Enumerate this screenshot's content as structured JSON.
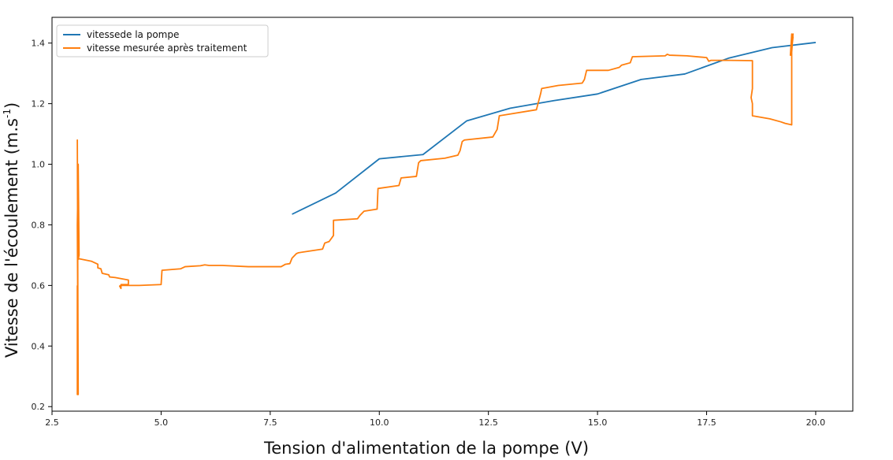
{
  "chart_data": {
    "type": "line",
    "xlabel": "Tension d'alimentation de la pompe (V)",
    "ylabel": "Vitesse de l'écoulement (m.s",
    "ylabel_sup": "-1",
    "ylabel_close": ")",
    "xlim": [
      2.5,
      20.85
    ],
    "ylim": [
      0.185,
      1.485
    ],
    "xticks": [
      2.5,
      5.0,
      7.5,
      10.0,
      12.5,
      15.0,
      17.5,
      20.0
    ],
    "xtick_labels": [
      "2.5",
      "5.0",
      "7.5",
      "10.0",
      "12.5",
      "15.0",
      "17.5",
      "20.0"
    ],
    "yticks": [
      0.2,
      0.4,
      0.6,
      0.8,
      1.0,
      1.2,
      1.4
    ],
    "ytick_labels": [
      "0.2",
      "0.4",
      "0.6",
      "0.8",
      "1.0",
      "1.2",
      "1.4"
    ],
    "grid": false,
    "legend_position": "top-left",
    "series": [
      {
        "name": "vitessede la pompe",
        "color": "#1f77b4",
        "x": [
          8,
          9,
          10,
          11,
          12,
          13,
          14,
          15,
          16,
          17,
          18,
          19,
          20
        ],
        "y": [
          0.835,
          0.905,
          1.018,
          1.032,
          1.143,
          1.185,
          1.21,
          1.232,
          1.28,
          1.298,
          1.35,
          1.385,
          1.402
        ]
      },
      {
        "name": "vitesse mesurée après traitement",
        "color": "#ff7f0e",
        "x": [
          3.08,
          3.08,
          3.1,
          3.08,
          3.1,
          3.08,
          3.1,
          3.12,
          3.1,
          3.12,
          3.4,
          3.55,
          3.55,
          3.62,
          3.65,
          3.8,
          3.82,
          3.95,
          4.25,
          4.25,
          4.08,
          4.08,
          4.05,
          4.1,
          4.5,
          5.0,
          5.02,
          5.45,
          5.55,
          5.9,
          6.0,
          6.1,
          6.4,
          7.0,
          7.75,
          7.85,
          7.95,
          8.0,
          8.1,
          8.15,
          8.7,
          8.75,
          8.85,
          8.95,
          8.95,
          9.5,
          9.55,
          9.65,
          9.95,
          9.97,
          10.45,
          10.5,
          10.85,
          10.9,
          10.95,
          11.5,
          11.8,
          11.85,
          11.9,
          11.95,
          12.6,
          12.7,
          12.75,
          13.6,
          13.7,
          13.72,
          14.1,
          14.65,
          14.7,
          14.75,
          15.25,
          15.5,
          15.55,
          15.75,
          15.8,
          16.55,
          16.6,
          16.65,
          17.05,
          17.5,
          17.55,
          17.6,
          18.05,
          18.55,
          18.55,
          18.52,
          18.55,
          18.55,
          18.95,
          19.2,
          19.3,
          19.45,
          19.45,
          19.42,
          19.48,
          19.45,
          19.48,
          19.45,
          19.47
        ],
        "y": [
          0.6,
          0.24,
          0.24,
          1.08,
          0.24,
          0.8,
          1.0,
          0.7,
          0.686,
          0.688,
          0.68,
          0.67,
          0.658,
          0.655,
          0.64,
          0.635,
          0.628,
          0.626,
          0.618,
          0.603,
          0.603,
          0.59,
          0.598,
          0.6,
          0.6,
          0.603,
          0.65,
          0.655,
          0.662,
          0.665,
          0.668,
          0.666,
          0.666,
          0.662,
          0.662,
          0.67,
          0.672,
          0.69,
          0.705,
          0.708,
          0.72,
          0.74,
          0.745,
          0.765,
          0.815,
          0.82,
          0.83,
          0.845,
          0.852,
          0.92,
          0.93,
          0.955,
          0.96,
          1.005,
          1.012,
          1.02,
          1.03,
          1.045,
          1.075,
          1.08,
          1.09,
          1.115,
          1.16,
          1.18,
          1.235,
          1.25,
          1.26,
          1.268,
          1.28,
          1.31,
          1.31,
          1.32,
          1.327,
          1.335,
          1.355,
          1.358,
          1.363,
          1.36,
          1.358,
          1.352,
          1.34,
          1.343,
          1.343,
          1.342,
          1.25,
          1.22,
          1.2,
          1.16,
          1.15,
          1.14,
          1.135,
          1.13,
          1.43,
          1.36,
          1.42,
          1.38,
          1.43,
          1.37,
          1.41
        ]
      }
    ]
  }
}
